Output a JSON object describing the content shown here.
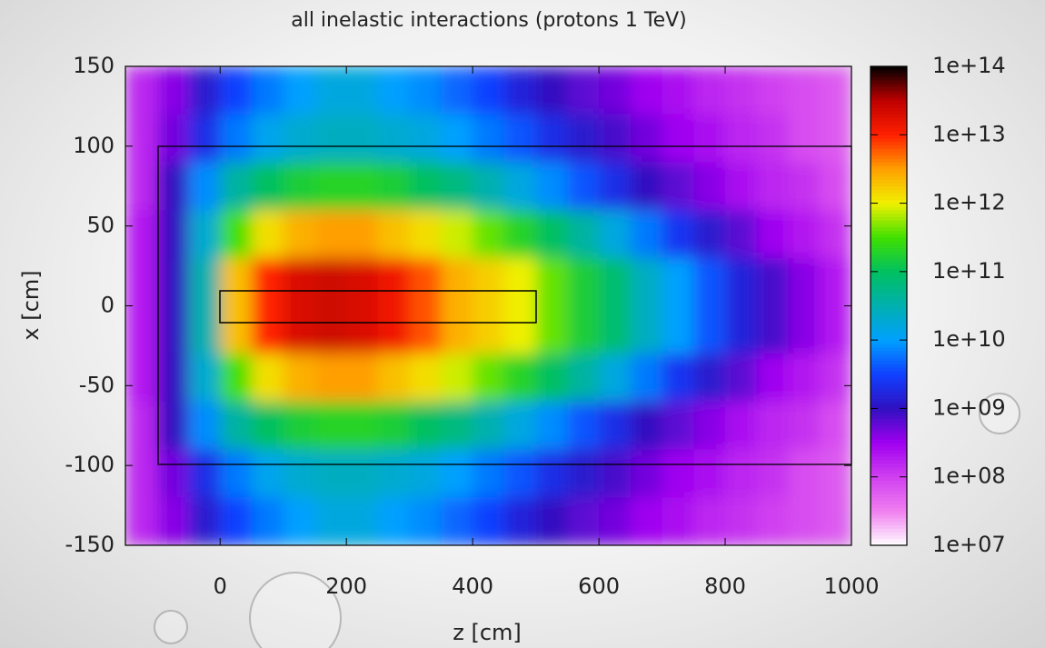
{
  "chart_data": {
    "type": "heatmap",
    "title": "all inelastic interactions (protons 1 TeV)",
    "xlabel": "z [cm]",
    "ylabel": "x [cm]",
    "xlim": [
      -150,
      1000
    ],
    "ylim": [
      -150,
      150
    ],
    "xticks": [
      0,
      200,
      400,
      600,
      800,
      1000
    ],
    "yticks": [
      -150,
      -100,
      -50,
      0,
      50,
      100,
      150
    ],
    "zlog": true,
    "zlim": [
      10000000.0,
      100000000000000.0
    ],
    "zticks": [
      {
        "value": 10000000.0,
        "label": "1e+07"
      },
      {
        "value": 100000000.0,
        "label": "1e+08"
      },
      {
        "value": 1000000000.0,
        "label": "1e+09"
      },
      {
        "value": 10000000000.0,
        "label": "1e+10"
      },
      {
        "value": 100000000000.0,
        "label": "1e+11"
      },
      {
        "value": 1000000000000.0,
        "label": "1e+12"
      },
      {
        "value": 10000000000000.0,
        "label": "1e+13"
      },
      {
        "value": 100000000000000.0,
        "label": "1e+14"
      }
    ],
    "colormap": [
      "#ffffff",
      "#f080f0",
      "#d040f0",
      "#a000f0",
      "#3010c0",
      "#1040ff",
      "#00a0ff",
      "#00b0b0",
      "#00c060",
      "#40e000",
      "#f0f000",
      "#ffa000",
      "#ff2000",
      "#c00000",
      "#000000"
    ],
    "x": [
      -125,
      -75,
      -25,
      25,
      75,
      125,
      175,
      225,
      275,
      325,
      375,
      425,
      475,
      525,
      575,
      625,
      675,
      725,
      775,
      825,
      875,
      925,
      975
    ],
    "y": [
      135,
      105,
      75,
      45,
      15,
      -15,
      -45,
      -75,
      -105,
      -135
    ],
    "z": [
      [
        160000000.0,
        400000000.0,
        1300000000.0,
        3200000000.0,
        6300000000.0,
        10000000000.0,
        16000000000.0,
        16000000000.0,
        10000000000.0,
        7900000000.0,
        5000000000.0,
        3200000000.0,
        1600000000.0,
        1000000000.0,
        630000000.0,
        500000000.0,
        320000000.0,
        250000000.0,
        160000000.0,
        130000000.0,
        100000000.0,
        79000000.0,
        63000000.0
      ],
      [
        160000000.0,
        500000000.0,
        2000000000.0,
        6300000000.0,
        13000000000.0,
        20000000000.0,
        25000000000.0,
        25000000000.0,
        20000000000.0,
        16000000000.0,
        10000000000.0,
        6300000000.0,
        4000000000.0,
        2000000000.0,
        1300000000.0,
        790000000.0,
        500000000.0,
        320000000.0,
        250000000.0,
        160000000.0,
        130000000.0,
        79000000.0,
        63000000.0
      ],
      [
        160000000.0,
        1000000000.0,
        7900000000.0,
        40000000000.0,
        100000000000.0,
        160000000000.0,
        200000000000.0,
        200000000000.0,
        160000000000.0,
        100000000000.0,
        63000000000.0,
        32000000000.0,
        16000000000.0,
        7900000000.0,
        4000000000.0,
        2000000000.0,
        1000000000.0,
        630000000.0,
        400000000.0,
        250000000.0,
        160000000.0,
        130000000.0,
        79000000.0
      ],
      [
        200000000.0,
        1000000000.0,
        20000000000.0,
        320000000000.0,
        1300000000000.0,
        2500000000000.0,
        3200000000000.0,
        3200000000000.0,
        2000000000000.0,
        1300000000000.0,
        790000000000.0,
        400000000000.0,
        200000000000.0,
        100000000000.0,
        40000000000.0,
        16000000000.0,
        6300000000.0,
        2500000000.0,
        1300000000.0,
        630000000.0,
        320000000.0,
        200000000.0,
        130000000.0
      ],
      [
        200000000.0,
        1000000000.0,
        32000000000.0,
        2000000000000.0,
        10000000000000.0,
        20000000000000.0,
        25000000000000.0,
        20000000000000.0,
        13000000000000.0,
        6300000000000.0,
        2500000000000.0,
        1600000000000.0,
        1000000000000.0,
        400000000000.0,
        160000000000.0,
        79000000000.0,
        25000000000.0,
        10000000000.0,
        4000000000.0,
        1600000000.0,
        790000000.0,
        400000000.0,
        200000000.0
      ],
      [
        200000000.0,
        1000000000.0,
        32000000000.0,
        2000000000000.0,
        10000000000000.0,
        20000000000000.0,
        25000000000000.0,
        20000000000000.0,
        13000000000000.0,
        6300000000000.0,
        2500000000000.0,
        1600000000000.0,
        1000000000000.0,
        400000000000.0,
        160000000000.0,
        79000000000.0,
        25000000000.0,
        10000000000.0,
        4000000000.0,
        1600000000.0,
        790000000.0,
        400000000.0,
        200000000.0
      ],
      [
        200000000.0,
        1000000000.0,
        20000000000.0,
        320000000000.0,
        1300000000000.0,
        2500000000000.0,
        3200000000000.0,
        3200000000000.0,
        2000000000000.0,
        1300000000000.0,
        790000000000.0,
        400000000000.0,
        200000000000.0,
        100000000000.0,
        40000000000.0,
        16000000000.0,
        6300000000.0,
        2500000000.0,
        1300000000.0,
        630000000.0,
        320000000.0,
        200000000.0,
        130000000.0
      ],
      [
        160000000.0,
        1000000000.0,
        7900000000.0,
        40000000000.0,
        100000000000.0,
        160000000000.0,
        200000000000.0,
        200000000000.0,
        160000000000.0,
        100000000000.0,
        63000000000.0,
        32000000000.0,
        16000000000.0,
        7900000000.0,
        4000000000.0,
        2000000000.0,
        1000000000.0,
        630000000.0,
        400000000.0,
        250000000.0,
        160000000.0,
        130000000.0,
        79000000.0
      ],
      [
        160000000.0,
        500000000.0,
        2000000000.0,
        6300000000.0,
        13000000000.0,
        20000000000.0,
        25000000000.0,
        25000000000.0,
        20000000000.0,
        16000000000.0,
        10000000000.0,
        6300000000.0,
        4000000000.0,
        2000000000.0,
        1300000000.0,
        790000000.0,
        500000000.0,
        320000000.0,
        250000000.0,
        160000000.0,
        130000000.0,
        79000000.0,
        63000000.0
      ],
      [
        160000000.0,
        400000000.0,
        1300000000.0,
        3200000000.0,
        6300000000.0,
        10000000000.0,
        16000000000.0,
        16000000000.0,
        10000000000.0,
        7900000000.0,
        5000000000.0,
        3200000000.0,
        1600000000.0,
        1000000000.0,
        630000000.0,
        500000000.0,
        320000000.0,
        250000000.0,
        160000000.0,
        130000000.0,
        100000000.0,
        79000000.0,
        63000000.0
      ]
    ]
  }
}
